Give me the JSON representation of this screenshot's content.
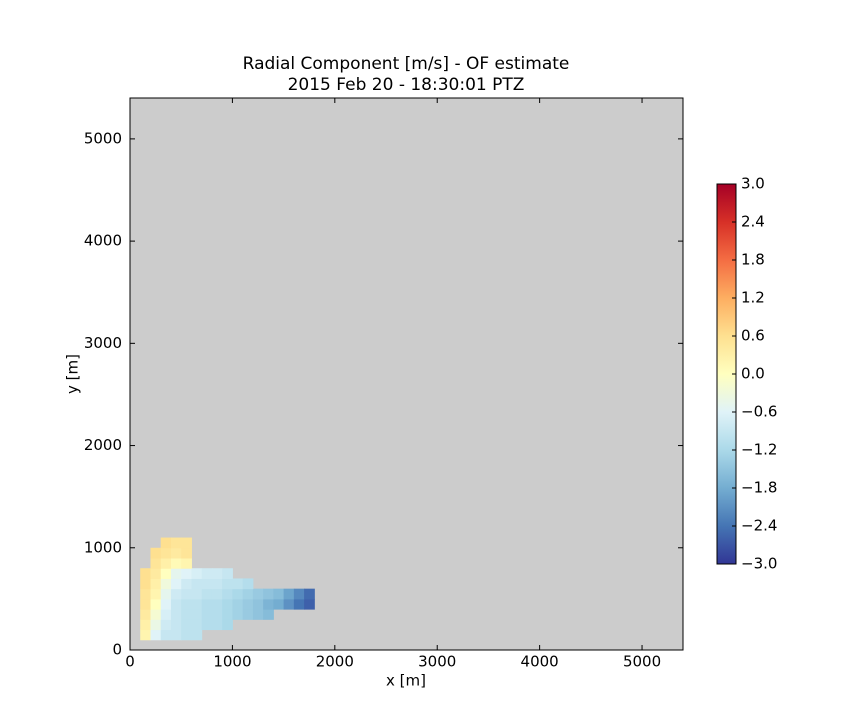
{
  "chart_data": {
    "type": "heatmap",
    "title": "Radial Component [m/s] - OF estimate",
    "subtitle": "2015 Feb 20 - 18:30:01 PTZ",
    "xlabel": "x [m]",
    "ylabel": "y [m]",
    "xlim": [
      0,
      5400
    ],
    "ylim": [
      0,
      5400
    ],
    "xticks": [
      0,
      1000,
      2000,
      3000,
      4000,
      5000
    ],
    "yticks": [
      0,
      1000,
      2000,
      3000,
      4000,
      5000
    ],
    "facecolor": "#cccccc",
    "colormap": "RdYlBu_r",
    "clim": [
      -3,
      3
    ],
    "cbar_ticks": [
      {
        "value": -3,
        "label": "−3.0"
      },
      {
        "value": -2.4,
        "label": "−2.4"
      },
      {
        "value": -1.8,
        "label": "−1.8"
      },
      {
        "value": -1.2,
        "label": "−1.2"
      },
      {
        "value": -0.6,
        "label": "−0.6"
      },
      {
        "value": 0,
        "label": "0.0"
      },
      {
        "value": 0.6,
        "label": "0.6"
      },
      {
        "value": 1.2,
        "label": "1.2"
      },
      {
        "value": 1.8,
        "label": "1.8"
      },
      {
        "value": 2.4,
        "label": "2.4"
      },
      {
        "value": 3,
        "label": "3.0"
      }
    ],
    "x": [
      150,
      250,
      350,
      450,
      550,
      650,
      750,
      850,
      950,
      1050,
      1150,
      1250,
      1350,
      1450,
      1550,
      1650,
      1750
    ],
    "y": [
      150,
      250,
      350,
      450,
      550,
      650,
      750,
      850,
      950,
      1050
    ],
    "values": [
      [
        0.2,
        -0.6,
        -0.9,
        -0.9,
        -1.0,
        -1.0,
        null,
        null,
        null,
        null,
        null,
        null,
        null,
        null,
        null,
        null,
        null
      ],
      [
        0.3,
        -0.4,
        -0.8,
        -0.9,
        -1.0,
        -1.0,
        -1.1,
        -1.1,
        -1.2,
        null,
        null,
        null,
        null,
        null,
        null,
        null,
        null
      ],
      [
        0.4,
        -0.2,
        -0.7,
        -0.9,
        -1.0,
        -1.0,
        -1.1,
        -1.1,
        -1.2,
        -1.3,
        -1.4,
        -1.5,
        -1.6,
        null,
        null,
        null,
        null
      ],
      [
        0.5,
        0.0,
        -0.6,
        -0.9,
        -1.0,
        -1.0,
        -1.1,
        -1.1,
        -1.2,
        -1.3,
        -1.4,
        -1.5,
        -1.7,
        -1.8,
        -2.1,
        -2.4,
        -2.6
      ],
      [
        0.5,
        0.2,
        -0.5,
        -0.8,
        -0.9,
        -0.9,
        -1.0,
        -1.0,
        -1.1,
        -1.2,
        -1.3,
        -1.4,
        -1.5,
        -1.6,
        -1.9,
        -2.2,
        -2.5
      ],
      [
        0.6,
        0.3,
        -0.3,
        -0.6,
        -0.8,
        -0.9,
        -0.9,
        -0.9,
        -1.0,
        -1.0,
        -1.1,
        null,
        null,
        null,
        null,
        null,
        null
      ],
      [
        0.6,
        0.4,
        0.0,
        -0.5,
        -0.6,
        -0.7,
        -0.8,
        -0.8,
        -0.9,
        null,
        null,
        null,
        null,
        null,
        null,
        null,
        null
      ],
      [
        null,
        0.5,
        0.3,
        0.1,
        0.2,
        null,
        null,
        null,
        null,
        null,
        null,
        null,
        null,
        null,
        null,
        null,
        null
      ],
      [
        null,
        0.6,
        0.5,
        0.4,
        0.5,
        null,
        null,
        null,
        null,
        null,
        null,
        null,
        null,
        null,
        null,
        null,
        null
      ],
      [
        null,
        null,
        0.6,
        0.5,
        0.5,
        null,
        null,
        null,
        null,
        null,
        null,
        null,
        null,
        null,
        null,
        null,
        null
      ]
    ]
  }
}
